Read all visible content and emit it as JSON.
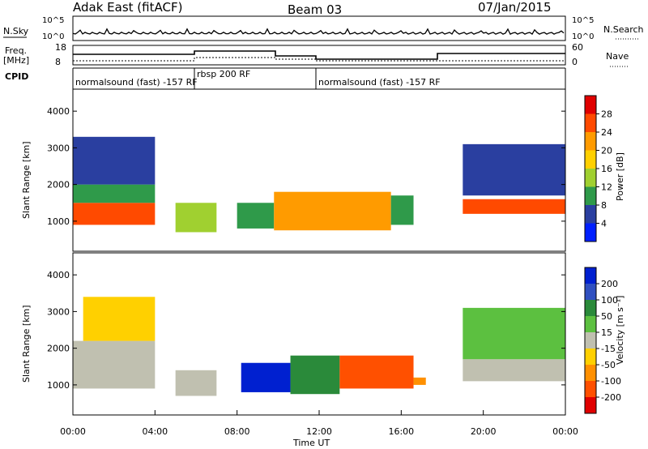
{
  "header": {
    "site": "Adak East (fitACF)",
    "beam": "Beam 03",
    "date": "07/Jan/2015"
  },
  "noise_panel": {
    "left_label": "N.Sky",
    "right_label": "N.Search",
    "left_ticks": [
      "10^5",
      "10^0"
    ],
    "right_ticks": [
      "10^5",
      "10^0"
    ]
  },
  "freq_panel": {
    "left_label_1": "Freq.",
    "left_label_2": "[MHz]",
    "right_label": "Nave",
    "left_ticks": [
      "18",
      "8"
    ],
    "right_ticks": [
      "60",
      "0"
    ]
  },
  "cpid": {
    "label": "CPID",
    "segments": [
      {
        "name": "normalsound (fast) -157 RF",
        "start_h": 0,
        "end_h": 6
      },
      {
        "name": "rbsp 200 RF",
        "start_h": 6,
        "end_h": 12
      },
      {
        "name": "normalsound (fast) -157 RF",
        "start_h": 12,
        "end_h": 24
      }
    ]
  },
  "power_colorbar": {
    "label": "Power [dB]",
    "ticks": [
      "28",
      "24",
      "20",
      "16",
      "12",
      "8",
      "4"
    ],
    "colors": [
      "#e00000",
      "#ff4a00",
      "#ff9b00",
      "#ffd000",
      "#a0d030",
      "#2f9a4a",
      "#2a3fa0",
      "#0020ff"
    ]
  },
  "velocity_colorbar": {
    "label": "Velocity [m s⁻¹]",
    "ticks": [
      "200",
      "100",
      "50",
      "15",
      "-15",
      "-50",
      "-100",
      "-200"
    ],
    "colors": [
      "#0020d0",
      "#3050c0",
      "#2a8a3a",
      "#5cc040",
      "#c0c0b0",
      "#ffd000",
      "#ff9000",
      "#ff5000",
      "#e00000"
    ]
  },
  "chart_data": {
    "type": "heatmap",
    "x_axis": {
      "label": "Time UT",
      "ticks": [
        "00:00",
        "04:00",
        "08:00",
        "12:00",
        "16:00",
        "20:00",
        "00:00"
      ],
      "range_h": [
        0,
        24
      ]
    },
    "y_axis": {
      "label": "Slant Range [km]",
      "ticks": [
        "4000",
        "3000",
        "2000",
        "1000"
      ],
      "range_km": [
        180,
        4600
      ]
    },
    "power_regions": [
      {
        "t0": 0.0,
        "t1": 4.0,
        "r0": 900,
        "r1": 1500,
        "level": 28
      },
      {
        "t0": 0.0,
        "t1": 4.0,
        "r0": 1500,
        "r1": 2000,
        "level": 12
      },
      {
        "t0": 0.0,
        "t1": 4.0,
        "r0": 2000,
        "r1": 3300,
        "level": 8
      },
      {
        "t0": 5.0,
        "t1": 7.0,
        "r0": 700,
        "r1": 1500,
        "level": 14
      },
      {
        "t0": 8.0,
        "t1": 9.8,
        "r0": 800,
        "r1": 1500,
        "level": 10
      },
      {
        "t0": 9.8,
        "t1": 15.5,
        "r0": 750,
        "r1": 1800,
        "level": 24
      },
      {
        "t0": 15.5,
        "t1": 16.6,
        "r0": 900,
        "r1": 1700,
        "level": 12
      },
      {
        "t0": 19.0,
        "t1": 24.0,
        "r0": 1200,
        "r1": 1600,
        "level": 26
      },
      {
        "t0": 19.0,
        "t1": 24.0,
        "r0": 1700,
        "r1": 3100,
        "level": 8
      }
    ],
    "velocity_regions": [
      {
        "t0": 0.0,
        "t1": 4.0,
        "r0": 900,
        "r1": 2200,
        "v": 0
      },
      {
        "t0": 0.5,
        "t1": 4.0,
        "r0": 2200,
        "r1": 3400,
        "v": -30
      },
      {
        "t0": 5.0,
        "t1": 7.0,
        "r0": 700,
        "r1": 1400,
        "v": 0
      },
      {
        "t0": 8.2,
        "t1": 10.6,
        "r0": 800,
        "r1": 1600,
        "v": 200
      },
      {
        "t0": 10.6,
        "t1": 13.0,
        "r0": 750,
        "r1": 1800,
        "v": 60
      },
      {
        "t0": 13.0,
        "t1": 16.6,
        "r0": 900,
        "r1": 1800,
        "v": -80
      },
      {
        "t0": 16.6,
        "t1": 17.2,
        "r0": 1000,
        "r1": 1200,
        "v": -40
      },
      {
        "t0": 19.0,
        "t1": 24.0,
        "r0": 1100,
        "r1": 1700,
        "v": 0
      },
      {
        "t0": 19.0,
        "t1": 24.0,
        "r0": 1700,
        "r1": 3100,
        "v": 30
      }
    ]
  }
}
